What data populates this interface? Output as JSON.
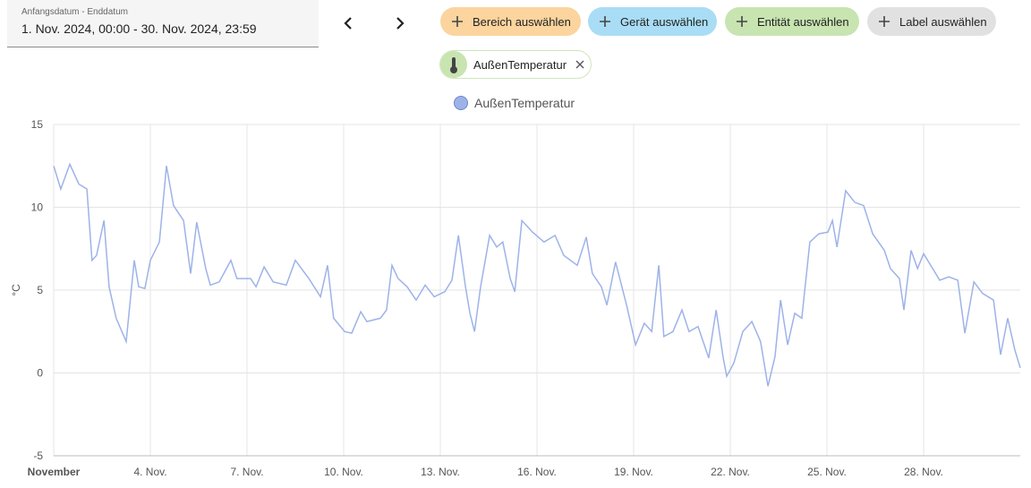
{
  "date_picker": {
    "label": "Anfangsdatum - Enddatum",
    "value": "1. Nov. 2024, 00:00 - 30. Nov. 2024, 23:59"
  },
  "target_buttons": [
    "Bereich auswählen",
    "Gerät auswählen",
    "Entität auswählen",
    "Label auswählen"
  ],
  "chips": [
    {
      "label": "AußenTemperatur"
    }
  ],
  "chart_data": {
    "type": "line",
    "ylabel": "°C",
    "xlim": [
      0,
      30
    ],
    "xticks": [
      {
        "value": 0,
        "label": "November"
      },
      {
        "value": 3,
        "label": "4. Nov."
      },
      {
        "value": 6,
        "label": "7. Nov."
      },
      {
        "value": 9,
        "label": "10. Nov."
      },
      {
        "value": 12,
        "label": "13. Nov."
      },
      {
        "value": 15,
        "label": "16. Nov."
      },
      {
        "value": 18,
        "label": "19. Nov."
      },
      {
        "value": 21,
        "label": "22. Nov."
      },
      {
        "value": 24,
        "label": "25. Nov."
      },
      {
        "value": 27,
        "label": "28. Nov."
      }
    ],
    "ylim": [
      -5,
      15
    ],
    "yticks": [
      -5,
      0,
      5,
      10,
      15
    ],
    "grid": true,
    "x": [
      0,
      0.22,
      0.5,
      0.78,
      1.03,
      1.19,
      1.33,
      1.56,
      1.72,
      1.94,
      2.25,
      2.5,
      2.64,
      2.83,
      3.0,
      3.28,
      3.5,
      3.72,
      4.03,
      4.25,
      4.44,
      4.72,
      4.86,
      5.14,
      5.5,
      5.69,
      6.11,
      6.28,
      6.53,
      6.81,
      7.22,
      7.5,
      7.92,
      8.28,
      8.5,
      8.69,
      9.03,
      9.25,
      9.53,
      9.72,
      10.14,
      10.33,
      10.5,
      10.69,
      10.97,
      11.25,
      11.53,
      11.81,
      12.14,
      12.36,
      12.56,
      12.78,
      12.92,
      13.06,
      13.25,
      13.53,
      13.75,
      13.94,
      14.17,
      14.31,
      14.53,
      14.86,
      15.22,
      15.56,
      15.83,
      16.25,
      16.53,
      16.72,
      17.0,
      17.17,
      17.44,
      17.78,
      18.06,
      18.33,
      18.56,
      18.78,
      18.94,
      19.22,
      19.5,
      19.72,
      20.0,
      20.33,
      20.56,
      20.78,
      20.89,
      21.11,
      21.39,
      21.67,
      21.94,
      22.17,
      22.39,
      22.56,
      22.78,
      23.0,
      23.22,
      23.47,
      23.75,
      24.03,
      24.17,
      24.31,
      24.58,
      24.86,
      25.14,
      25.42,
      25.78,
      25.97,
      26.25,
      26.39,
      26.61,
      26.81,
      27.0,
      27.28,
      27.5,
      27.78,
      28.06,
      28.28,
      28.56,
      28.83,
      29.17,
      29.39,
      29.61,
      29.83,
      30.0
    ],
    "series": [
      {
        "name": "AußenTemperatur",
        "color": "#9db3e8",
        "values": [
          12.5,
          11.1,
          12.6,
          11.4,
          11.1,
          6.8,
          7.1,
          9.2,
          5.2,
          3.3,
          1.9,
          6.8,
          5.2,
          5.1,
          6.8,
          7.9,
          12.5,
          10.1,
          9.2,
          6.0,
          9.1,
          6.3,
          5.3,
          5.5,
          6.8,
          5.7,
          5.7,
          5.2,
          6.4,
          5.5,
          5.3,
          6.8,
          5.7,
          4.6,
          6.5,
          3.3,
          2.5,
          2.4,
          3.7,
          3.1,
          3.3,
          3.8,
          6.5,
          5.7,
          5.2,
          4.4,
          5.3,
          4.6,
          4.9,
          5.6,
          8.3,
          5.2,
          3.6,
          2.5,
          5.2,
          8.3,
          7.6,
          7.9,
          5.7,
          4.9,
          9.2,
          8.5,
          7.9,
          8.3,
          7.1,
          6.5,
          8.2,
          6.0,
          5.2,
          4.1,
          6.7,
          4.1,
          1.7,
          3.0,
          2.5,
          6.5,
          2.2,
          2.5,
          3.8,
          2.5,
          2.8,
          0.9,
          3.8,
          0.9,
          -0.2,
          0.6,
          2.5,
          3.1,
          1.9,
          -0.8,
          1.0,
          4.4,
          1.7,
          3.6,
          3.3,
          7.9,
          8.4,
          8.5,
          9.2,
          7.6,
          11.0,
          10.3,
          10.1,
          8.4,
          7.4,
          6.3,
          5.7,
          3.8,
          7.4,
          6.3,
          7.2,
          6.3,
          5.6,
          5.8,
          5.6,
          2.4,
          5.5,
          4.8,
          4.4,
          1.1,
          3.3,
          1.4,
          0.3
        ]
      }
    ]
  }
}
